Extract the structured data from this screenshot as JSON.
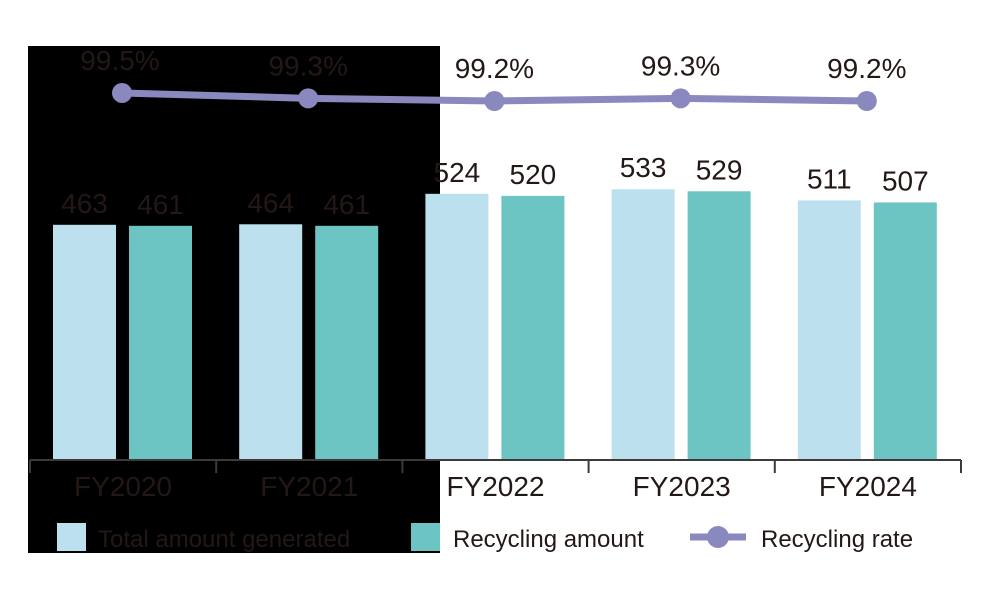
{
  "chart_data": {
    "type": "bar",
    "categories": [
      "FY2020",
      "FY2021",
      "FY2022",
      "FY2023",
      "FY2024"
    ],
    "series": [
      {
        "name": "Total amount generated",
        "type": "bar",
        "color": "#bde0ef",
        "values": [
          463,
          464,
          524,
          533,
          511
        ]
      },
      {
        "name": "Recycling amount",
        "type": "bar",
        "color": "#6cc5c3",
        "values": [
          461,
          461,
          520,
          529,
          507
        ]
      },
      {
        "name": "Recycling rate",
        "type": "line",
        "color": "#8a89bf",
        "values": [
          99.5,
          99.3,
          99.2,
          99.3,
          99.2
        ],
        "labels": [
          "99.5%",
          "99.3%",
          "99.2%",
          "99.3%",
          "99.2%"
        ]
      }
    ],
    "title": "",
    "xlabel": "",
    "ylabel": "",
    "grid": false,
    "legend_position": "bottom",
    "annotations": [
      "black rectangle occludes FY2020-FY2021 region and left part of legend"
    ]
  },
  "legend": {
    "total": "Total amount generated",
    "recycling": "Recycling amount",
    "rate": "Recycling rate"
  },
  "colors": {
    "total": "#bde0ef",
    "recycling": "#6cc5c3",
    "rate": "#8a89bf",
    "text": "#231815",
    "axis": "#3e3a39"
  }
}
